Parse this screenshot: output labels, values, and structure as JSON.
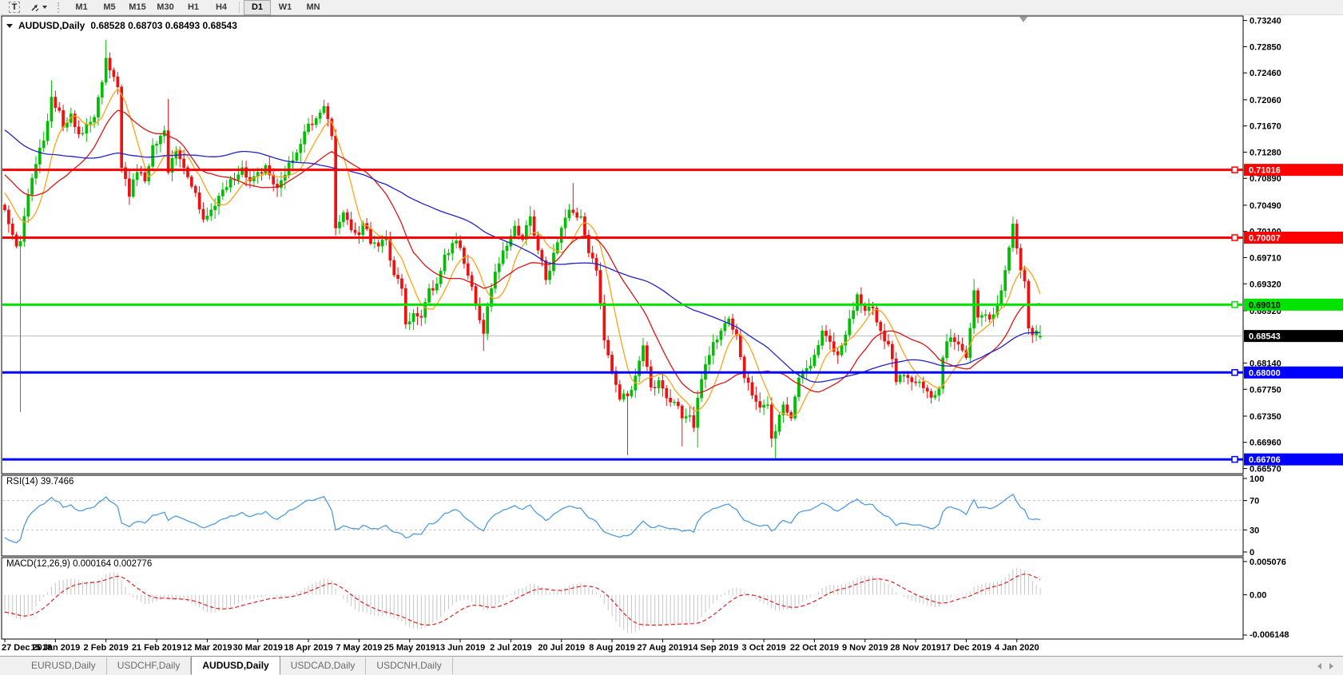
{
  "toolbar": {
    "text_tool_label": "T",
    "timeframes": [
      "M1",
      "M5",
      "M15",
      "M30",
      "H1",
      "H4",
      "D1",
      "W1",
      "MN"
    ],
    "active_timeframe": "D1"
  },
  "chart": {
    "title": "AUDUSD,Daily",
    "ohlc_text": "0.68528 0.68703 0.68493 0.68543",
    "y_ticks": [
      "0.73240",
      "0.72850",
      "0.72460",
      "0.72060",
      "0.71670",
      "0.71280",
      "0.70890",
      "0.70490",
      "0.70100",
      "0.69710",
      "0.69320",
      "0.68920",
      "0.68140",
      "0.67750",
      "0.67350",
      "0.66960",
      "0.66570"
    ],
    "hlines": [
      {
        "value": 0.71016,
        "label": "0.71016",
        "color": "#FF0000",
        "text_color": "#FFFFFF"
      },
      {
        "value": 0.70007,
        "label": "0.70007",
        "color": "#FF0000",
        "text_color": "#FFFFFF"
      },
      {
        "value": 0.6901,
        "label": "0.69010",
        "color": "#00E400",
        "text_color": "#000000"
      },
      {
        "value": 0.68,
        "label": "0.68000",
        "color": "#0000FF",
        "text_color": "#FFFFFF"
      },
      {
        "value": 0.66706,
        "label": "0.66706",
        "color": "#0000FF",
        "text_color": "#FFFFFF"
      }
    ],
    "current_price": {
      "value": 0.68543,
      "label": "0.68543",
      "badge_bg": "#000000",
      "badge_text": "#FFFFFF",
      "line_color": "#BDBDBD"
    }
  },
  "rsi": {
    "label": "RSI(14) 39.7466",
    "period": 14,
    "ticks": [
      {
        "v": 100,
        "t": "100"
      },
      {
        "v": 70,
        "t": "70"
      },
      {
        "v": 30,
        "t": "30"
      },
      {
        "v": 0,
        "t": "0"
      }
    ],
    "levels": [
      70,
      30
    ],
    "line_color": "#4E9BDF"
  },
  "macd": {
    "label": "MACD(12,26,9) 0.000164 0.002776",
    "params": [
      12,
      26,
      9
    ],
    "max": 0.005076,
    "min": -0.006148,
    "ticks": [
      {
        "v": 0.005076,
        "t": "0.005076"
      },
      {
        "v": 0,
        "t": "0.00"
      },
      {
        "v": -0.006148,
        "t": "-0.006148"
      }
    ],
    "bar_color": "#C6C6C6",
    "signal_color": "#E02020"
  },
  "x_axis": {
    "labels": [
      {
        "t": "27 Dec 2018",
        "i": 0
      },
      {
        "t": "15 Jan 2019",
        "i": 13
      },
      {
        "t": "2 Feb 2019",
        "i": 26
      },
      {
        "t": "21 Feb 2019",
        "i": 39
      },
      {
        "t": "12 Mar 2019",
        "i": 52
      },
      {
        "t": "30 Mar 2019",
        "i": 65
      },
      {
        "t": "18 Apr 2019",
        "i": 78
      },
      {
        "t": "7 May 2019",
        "i": 91
      },
      {
        "t": "25 May 2019",
        "i": 104
      },
      {
        "t": "13 Jun 2019",
        "i": 117
      },
      {
        "t": "2 Jul 2019",
        "i": 130
      },
      {
        "t": "20 Jul 2019",
        "i": 143
      },
      {
        "t": "8 Aug 2019",
        "i": 156
      },
      {
        "t": "27 Aug 2019",
        "i": 169
      },
      {
        "t": "14 Sep 2019",
        "i": 182
      },
      {
        "t": "3 Oct 2019",
        "i": 195
      },
      {
        "t": "22 Oct 2019",
        "i": 208
      },
      {
        "t": "9 Nov 2019",
        "i": 221
      },
      {
        "t": "28 Nov 2019",
        "i": 234
      },
      {
        "t": "17 Dec 2019",
        "i": 247
      },
      {
        "t": "4 Jan 2020",
        "i": 260
      }
    ]
  },
  "tabs": {
    "items": [
      "EURUSD,Daily",
      "USDCHF,Daily",
      "AUDUSD,Daily",
      "USDCAD,Daily",
      "USDCNH,Daily"
    ],
    "active_index": 2
  },
  "chart_data": {
    "type": "candlestick",
    "symbol": "AUDUSD",
    "timeframe": "Daily",
    "title": "AUDUSD,Daily",
    "ylim": [
      0.66505,
      0.73295
    ],
    "n_candles": 267,
    "candle_up_color": "#00BE00",
    "candle_down_color": "#EF1010",
    "close_keypoints": [
      [
        0,
        0.7042
      ],
      [
        2,
        0.7005
      ],
      [
        3,
        0.6988
      ],
      [
        4,
        0.6995
      ],
      [
        6,
        0.7065
      ],
      [
        8,
        0.711
      ],
      [
        10,
        0.7145
      ],
      [
        12,
        0.721
      ],
      [
        14,
        0.719
      ],
      [
        15,
        0.7165
      ],
      [
        17,
        0.7185
      ],
      [
        19,
        0.7155
      ],
      [
        21,
        0.717
      ],
      [
        23,
        0.718
      ],
      [
        25,
        0.7232
      ],
      [
        26,
        0.7268
      ],
      [
        27,
        0.725
      ],
      [
        29,
        0.7225
      ],
      [
        30,
        0.7105
      ],
      [
        32,
        0.7062
      ],
      [
        34,
        0.7098
      ],
      [
        36,
        0.7085
      ],
      [
        38,
        0.7138
      ],
      [
        40,
        0.7152
      ],
      [
        41,
        0.716
      ],
      [
        42,
        0.7098
      ],
      [
        44,
        0.713
      ],
      [
        46,
        0.7105
      ],
      [
        48,
        0.7077
      ],
      [
        51,
        0.7028
      ],
      [
        53,
        0.7042
      ],
      [
        56,
        0.7072
      ],
      [
        58,
        0.7088
      ],
      [
        61,
        0.7105
      ],
      [
        63,
        0.7085
      ],
      [
        65,
        0.7098
      ],
      [
        67,
        0.7108
      ],
      [
        70,
        0.7075
      ],
      [
        73,
        0.7112
      ],
      [
        75,
        0.7127
      ],
      [
        78,
        0.717
      ],
      [
        80,
        0.7178
      ],
      [
        82,
        0.7196
      ],
      [
        84,
        0.7152
      ],
      [
        85,
        0.7015
      ],
      [
        87,
        0.7038
      ],
      [
        89,
        0.7012
      ],
      [
        91,
        0.7005
      ],
      [
        92,
        0.7022
      ],
      [
        94,
        0.6992
      ],
      [
        96,
        0.6988
      ],
      [
        98,
        0.7002
      ],
      [
        100,
        0.6945
      ],
      [
        102,
        0.6925
      ],
      [
        103,
        0.6872
      ],
      [
        105,
        0.6888
      ],
      [
        107,
        0.6882
      ],
      [
        109,
        0.6925
      ],
      [
        111,
        0.6932
      ],
      [
        113,
        0.6975
      ],
      [
        116,
        0.6996
      ],
      [
        118,
        0.6962
      ],
      [
        120,
        0.6928
      ],
      [
        122,
        0.6878
      ],
      [
        123,
        0.6858
      ],
      [
        125,
        0.6925
      ],
      [
        127,
        0.6962
      ],
      [
        129,
        0.6988
      ],
      [
        131,
        0.7018
      ],
      [
        133,
        0.6998
      ],
      [
        135,
        0.7032
      ],
      [
        137,
        0.6982
      ],
      [
        139,
        0.6938
      ],
      [
        141,
        0.6978
      ],
      [
        143,
        0.7015
      ],
      [
        145,
        0.7042
      ],
      [
        146,
        0.7038
      ],
      [
        148,
        0.7032
      ],
      [
        150,
        0.6978
      ],
      [
        152,
        0.6952
      ],
      [
        154,
        0.6848
      ],
      [
        156,
        0.6802
      ],
      [
        158,
        0.676
      ],
      [
        160,
        0.6765
      ],
      [
        162,
        0.6795
      ],
      [
        164,
        0.684
      ],
      [
        166,
        0.6778
      ],
      [
        168,
        0.6788
      ],
      [
        170,
        0.6762
      ],
      [
        172,
        0.6756
      ],
      [
        174,
        0.6732
      ],
      [
        176,
        0.6736
      ],
      [
        177,
        0.6718
      ],
      [
        178,
        0.6762
      ],
      [
        180,
        0.6812
      ],
      [
        182,
        0.6845
      ],
      [
        184,
        0.6862
      ],
      [
        186,
        0.688
      ],
      [
        188,
        0.6856
      ],
      [
        190,
        0.6792
      ],
      [
        192,
        0.6766
      ],
      [
        194,
        0.6748
      ],
      [
        196,
        0.6752
      ],
      [
        197,
        0.6702
      ],
      [
        198,
        0.6712
      ],
      [
        200,
        0.6752
      ],
      [
        202,
        0.6732
      ],
      [
        204,
        0.6792
      ],
      [
        206,
        0.6806
      ],
      [
        208,
        0.6826
      ],
      [
        210,
        0.6862
      ],
      [
        212,
        0.6846
      ],
      [
        214,
        0.6826
      ],
      [
        216,
        0.6856
      ],
      [
        218,
        0.6892
      ],
      [
        219,
        0.6916
      ],
      [
        221,
        0.6892
      ],
      [
        223,
        0.6896
      ],
      [
        225,
        0.6862
      ],
      [
        227,
        0.6842
      ],
      [
        229,
        0.6786
      ],
      [
        231,
        0.6796
      ],
      [
        233,
        0.6786
      ],
      [
        235,
        0.6786
      ],
      [
        237,
        0.6772
      ],
      [
        239,
        0.6766
      ],
      [
        240,
        0.6776
      ],
      [
        241,
        0.6822
      ],
      [
        242,
        0.6846
      ],
      [
        243,
        0.6852
      ],
      [
        245,
        0.6842
      ],
      [
        247,
        0.6822
      ],
      [
        249,
        0.6922
      ],
      [
        250,
        0.6882
      ],
      [
        252,
        0.6886
      ],
      [
        254,
        0.6886
      ],
      [
        255,
        0.6902
      ],
      [
        256,
        0.6922
      ],
      [
        257,
        0.6952
      ],
      [
        258,
        0.6986
      ],
      [
        259,
        0.7021
      ],
      [
        260,
        0.6985
      ],
      [
        261,
        0.6952
      ],
      [
        262,
        0.6936
      ],
      [
        263,
        0.6866
      ],
      [
        264,
        0.6856
      ],
      [
        265,
        0.6862
      ],
      [
        266,
        0.68543
      ]
    ],
    "wick_overrides": [
      {
        "i": 4,
        "low": 0.6741
      },
      {
        "i": 12,
        "high": 0.7235
      },
      {
        "i": 26,
        "high": 0.7295
      },
      {
        "i": 42,
        "high": 0.7207
      },
      {
        "i": 82,
        "high": 0.7206
      },
      {
        "i": 85,
        "low": 0.7004
      },
      {
        "i": 103,
        "low": 0.6865
      },
      {
        "i": 123,
        "low": 0.6832
      },
      {
        "i": 135,
        "high": 0.7048
      },
      {
        "i": 146,
        "high": 0.7082
      },
      {
        "i": 160,
        "low": 0.6677
      },
      {
        "i": 174,
        "low": 0.669
      },
      {
        "i": 178,
        "low": 0.6688
      },
      {
        "i": 198,
        "low": 0.667
      },
      {
        "i": 249,
        "high": 0.6939
      },
      {
        "i": 259,
        "high": 0.7032
      }
    ],
    "last_candle": {
      "o": 0.68528,
      "h": 0.68703,
      "l": 0.68493,
      "c": 0.68543
    },
    "prepend": {
      "count": 60,
      "from": 0.729,
      "to": 0.7058
    },
    "moving_averages": [
      {
        "period": 8,
        "color": "#FFA216"
      },
      {
        "period": 21,
        "color": "#D81616"
      },
      {
        "period": 55,
        "color": "#2222CC"
      }
    ]
  }
}
